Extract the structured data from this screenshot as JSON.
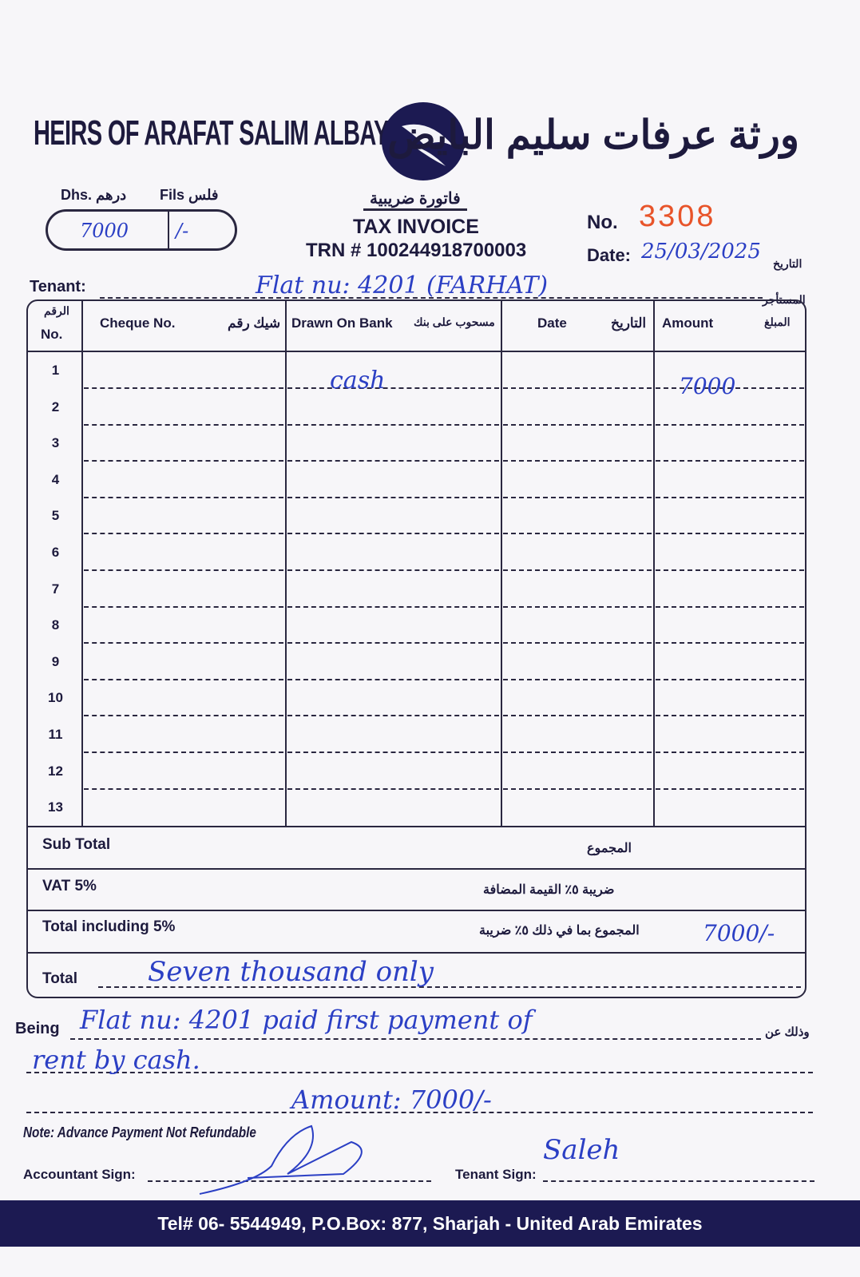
{
  "header": {
    "company_en": "HEIRS OF ARAFAT SALIM ALBAYEDH",
    "company_ar": "ورثة عرفات سليم البايض",
    "logo": "eagle-wing-logo",
    "dhs_label": "Dhs. درهم",
    "fils_label": "Fils فلس",
    "dhs_value": "7000",
    "fils_value": "/-",
    "doc_title_ar": "فاتورة ضريبية",
    "doc_title": "TAX INVOICE",
    "trn": "TRN # 100244918700003",
    "no_label": "No.",
    "no_value": "3308",
    "date_label": "Date:",
    "date_ar": "التاريخ",
    "date_value": "25/03/2025",
    "tenant_label": "Tenant:",
    "tenant_ar": "المستأجر",
    "tenant_value": "Flat nu: 4201 (FARHAT)"
  },
  "table": {
    "columns": [
      {
        "en": "No.",
        "ar": "الرقم"
      },
      {
        "en": "Cheque No.",
        "ar": "شيك رقم"
      },
      {
        "en": "Drawn On Bank",
        "ar": "مسحوب على بنك"
      },
      {
        "en": "Date",
        "ar": "التاريخ"
      },
      {
        "en": "Amount",
        "ar": "المبلغ"
      }
    ],
    "rows": [
      "1",
      "2",
      "3",
      "4",
      "5",
      "6",
      "7",
      "8",
      "9",
      "10",
      "11",
      "12",
      "13"
    ],
    "row1_bank": "cash",
    "row1_amount": "7000"
  },
  "summary": {
    "subtotal": "Sub Total",
    "subtotal_ar": "المجموع",
    "vat": "VAT 5%",
    "vat_ar": "ضريبة ٥٪ القيمة المضافة",
    "total_incl": "Total including 5%",
    "total_incl_ar": "المجموع بما في ذلك ٥٪ ضريبة",
    "total_incl_value": "7000/-",
    "total": "Total",
    "total_words": "Seven thousand only"
  },
  "being": {
    "label": "Being",
    "label_ar": "وذلك عن",
    "line1": "Flat nu: 4201 paid first payment of",
    "line2": "rent by cash.",
    "line3": "Amount: 7000/-"
  },
  "note": "Note: Advance Payment Not Refundable",
  "signs": {
    "accountant": "Accountant Sign:",
    "tenant": "Tenant Sign:",
    "tenant_signature": "Saleh"
  },
  "footer": "Tel# 06- 5544949, P.O.Box: 877, Sharjah - United Arab Emirates",
  "colors": {
    "ink": "#1d1a3d",
    "brand": "#1c1a52",
    "handwriting": "#2b3fc4",
    "number": "#e8542a"
  }
}
